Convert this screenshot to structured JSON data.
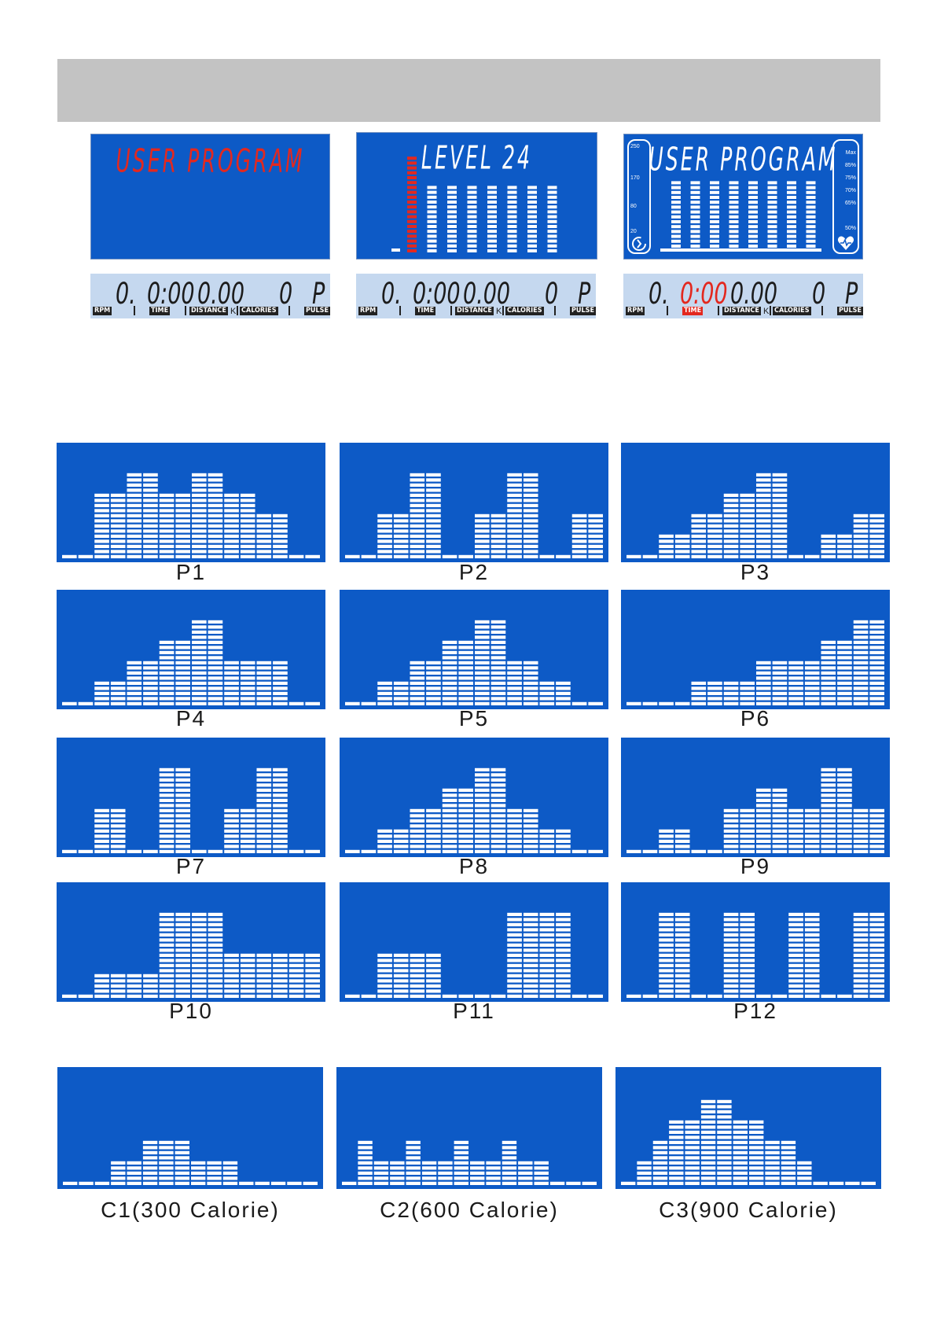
{
  "displays": [
    {
      "title": "USER PROGRAM",
      "title_color": "#e3281f",
      "status": {
        "rpm": "0.",
        "time": "0:00",
        "distance": "0.00",
        "calories": "0",
        "pulse": "P"
      }
    },
    {
      "title": "LEVEL 24",
      "title_color": "#ffffff",
      "bars": [
        20,
        14,
        14,
        14,
        14,
        14,
        14,
        14
      ],
      "first_segment_bar": true,
      "status": {
        "rpm": "0.",
        "time": "0:00",
        "distance": "0.00",
        "calories": "0",
        "pulse": "P"
      }
    },
    {
      "title": "USER PROGRAM",
      "title_color": "#ffffff",
      "bars": [
        14,
        14,
        14,
        14,
        14,
        14,
        14,
        14
      ],
      "left_scale": [
        "250",
        "170",
        "80",
        "20"
      ],
      "right_scale": [
        "Max",
        "85%",
        "75%",
        "70%",
        "65%",
        "50%"
      ],
      "status": {
        "rpm": "0.",
        "time": "0:00",
        "distance": "0.00",
        "calories": "0",
        "pulse": "P"
      },
      "time_highlight": true
    }
  ],
  "status_labels": {
    "rpm": "RPM",
    "time": "TIME",
    "distance": "DISTANCE",
    "km": "K",
    "calories": "CALORIES",
    "pulse": "PULSE"
  },
  "programs": [
    {
      "label": "P1",
      "levels": [
        1,
        1,
        4,
        4,
        5,
        5,
        4,
        4,
        5,
        5,
        4,
        4,
        3,
        3,
        1,
        1
      ]
    },
    {
      "label": "P2",
      "levels": [
        1,
        1,
        3,
        3,
        5,
        5,
        1,
        1,
        3,
        3,
        5,
        5,
        1,
        1,
        3,
        3
      ]
    },
    {
      "label": "P3",
      "levels": [
        1,
        1,
        2,
        2,
        3,
        3,
        4,
        4,
        5,
        5,
        1,
        1,
        2,
        2,
        3,
        3
      ]
    },
    {
      "label": "P4",
      "levels": [
        1,
        1,
        2,
        2,
        3,
        3,
        4,
        4,
        5,
        5,
        3,
        3,
        3,
        3,
        1,
        1
      ]
    },
    {
      "label": "P5",
      "levels": [
        1,
        1,
        2,
        2,
        3,
        3,
        4,
        4,
        5,
        5,
        3,
        3,
        2,
        2,
        1,
        1
      ]
    },
    {
      "label": "P6",
      "levels": [
        1,
        1,
        1,
        1,
        2,
        2,
        2,
        2,
        3,
        3,
        3,
        3,
        4,
        4,
        5,
        5
      ]
    },
    {
      "label": "P7",
      "levels": [
        1,
        1,
        3,
        3,
        1,
        1,
        5,
        5,
        1,
        1,
        3,
        3,
        5,
        5,
        1,
        1
      ]
    },
    {
      "label": "P8",
      "levels": [
        1,
        1,
        2,
        2,
        3,
        3,
        4,
        4,
        5,
        5,
        3,
        3,
        2,
        2,
        1,
        1
      ]
    },
    {
      "label": "P9",
      "levels": [
        1,
        1,
        2,
        2,
        1,
        1,
        3,
        3,
        4,
        4,
        3,
        3,
        5,
        5,
        3,
        3
      ]
    },
    {
      "label": "P10",
      "levels": [
        1,
        1,
        2,
        2,
        2,
        2,
        5,
        5,
        5,
        5,
        3,
        3,
        3,
        3,
        3,
        3
      ]
    },
    {
      "label": "P11",
      "levels": [
        1,
        1,
        3,
        3,
        3,
        3,
        1,
        1,
        1,
        1,
        5,
        5,
        5,
        5,
        1,
        1
      ]
    },
    {
      "label": "P12",
      "levels": [
        1,
        1,
        5,
        5,
        1,
        1,
        5,
        5,
        1,
        1,
        5,
        5,
        1,
        1,
        5,
        5
      ]
    }
  ],
  "calorie_programs": [
    {
      "label": "C1(300  Calorie)",
      "levels": [
        1,
        1,
        1,
        2,
        2,
        3,
        3,
        3,
        2,
        2,
        2,
        1,
        1,
        1,
        1,
        1
      ]
    },
    {
      "label": "C2(600 Calorie)",
      "levels": [
        1,
        3,
        2,
        2,
        3,
        2,
        2,
        3,
        2,
        2,
        3,
        2,
        2,
        1,
        1,
        1
      ]
    },
    {
      "label": "C3(900 Calorie)",
      "levels": [
        1,
        2,
        3,
        4,
        4,
        5,
        5,
        4,
        4,
        3,
        3,
        2,
        1,
        1,
        1,
        1
      ]
    }
  ]
}
